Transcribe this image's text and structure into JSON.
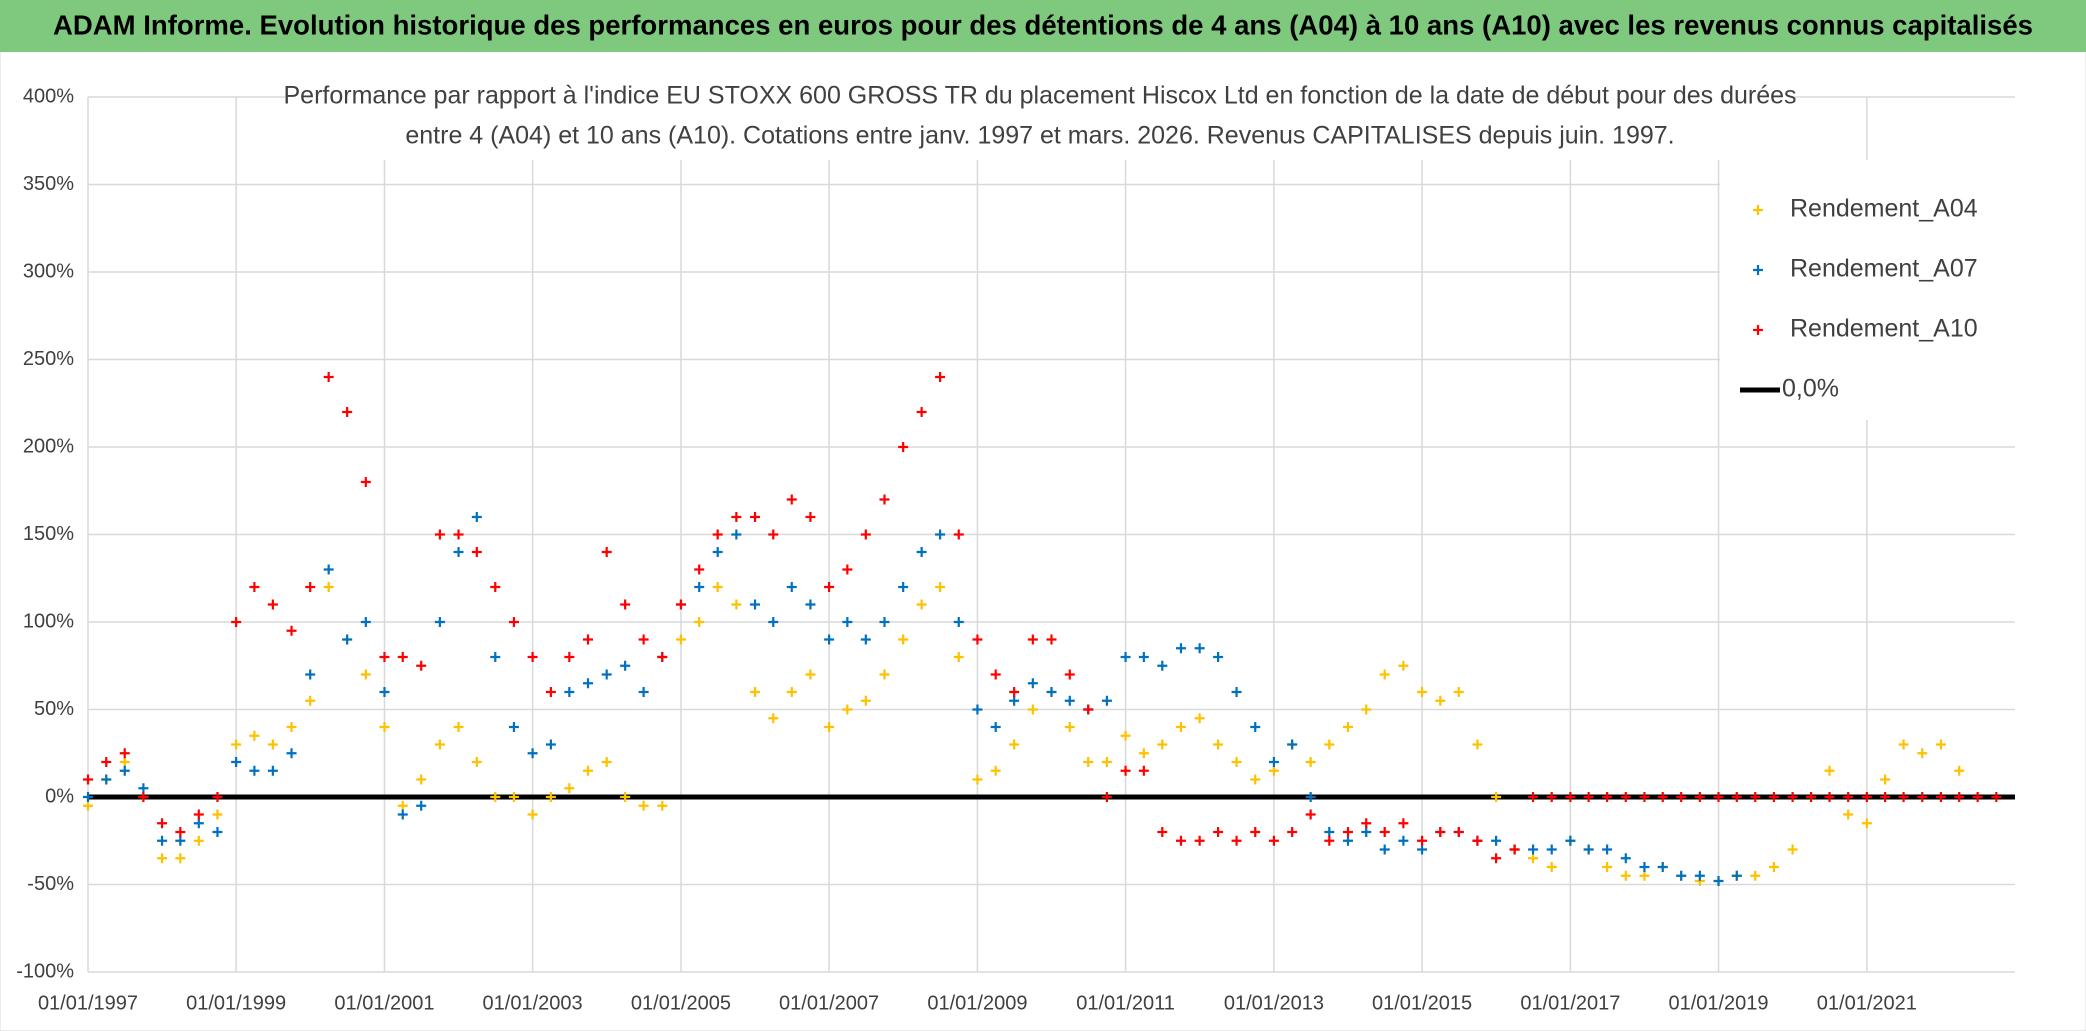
{
  "chart_data": {
    "type": "scatter",
    "title": "ADAM Informe. Evolution historique des performances en euros pour des détentions de 4 ans (A04) à 10 ans (A10) avec les revenus connus capitalisés",
    "subtitle": [
      "Performance par rapport à l'indice EU STOXX 600 GROSS TR  du placement Hiscox Ltd en fonction de la date de début pour des durées",
      "entre 4 (A04) et 10 ans (A10). Cotations entre janv. 1997 et mars. 2026. Revenus CAPITALISES depuis juin. 1997."
    ],
    "x": [
      "01/01/1997",
      "01/04/1997",
      "01/07/1997",
      "01/10/1997",
      "01/01/1998",
      "01/04/1998",
      "01/07/1998",
      "01/10/1998",
      "01/01/1999",
      "01/04/1999",
      "01/07/1999",
      "01/10/1999",
      "01/01/2000",
      "01/04/2000",
      "01/07/2000",
      "01/10/2000",
      "01/01/2001",
      "01/04/2001",
      "01/07/2001",
      "01/10/2001",
      "01/01/2002",
      "01/04/2002",
      "01/07/2002",
      "01/10/2002",
      "01/01/2003",
      "01/04/2003",
      "01/07/2003",
      "01/10/2003",
      "01/01/2004",
      "01/04/2004",
      "01/07/2004",
      "01/10/2004",
      "01/01/2005",
      "01/04/2005",
      "01/07/2005",
      "01/10/2005",
      "01/01/2006",
      "01/04/2006",
      "01/07/2006",
      "01/10/2006",
      "01/01/2007",
      "01/04/2007",
      "01/07/2007",
      "01/10/2007",
      "01/01/2008",
      "01/04/2008",
      "01/07/2008",
      "01/10/2008",
      "01/01/2009",
      "01/04/2009",
      "01/07/2009",
      "01/10/2009",
      "01/01/2010",
      "01/04/2010",
      "01/07/2010",
      "01/10/2010",
      "01/01/2011",
      "01/04/2011",
      "01/07/2011",
      "01/10/2011",
      "01/01/2012",
      "01/04/2012",
      "01/07/2012",
      "01/10/2012",
      "01/01/2013",
      "01/04/2013",
      "01/07/2013",
      "01/10/2013",
      "01/01/2014",
      "01/04/2014",
      "01/07/2014",
      "01/10/2014",
      "01/01/2015",
      "01/04/2015",
      "01/07/2015",
      "01/10/2015",
      "01/01/2016",
      "01/04/2016",
      "01/07/2016",
      "01/10/2016",
      "01/01/2017",
      "01/04/2017",
      "01/07/2017",
      "01/10/2017",
      "01/01/2018",
      "01/04/2018",
      "01/07/2018",
      "01/10/2018",
      "01/01/2019",
      "01/04/2019",
      "01/07/2019",
      "01/10/2019",
      "01/01/2020",
      "01/04/2020",
      "01/07/2020",
      "01/10/2020",
      "01/01/2021",
      "01/04/2021",
      "01/07/2021",
      "01/10/2021",
      "01/01/2022",
      "01/04/2022",
      "01/07/2022",
      "01/10/2022"
    ],
    "series": [
      {
        "name": "Rendement_A04",
        "color": "#ffc000",
        "values": [
          -5,
          10,
          20,
          0,
          -35,
          -35,
          -25,
          -10,
          30,
          35,
          30,
          40,
          55,
          120,
          90,
          70,
          40,
          -5,
          10,
          30,
          40,
          20,
          0,
          0,
          -10,
          0,
          5,
          15,
          20,
          0,
          -5,
          -5,
          90,
          100,
          120,
          110,
          60,
          45,
          60,
          70,
          40,
          50,
          55,
          70,
          90,
          110,
          120,
          80,
          10,
          15,
          30,
          50,
          60,
          40,
          20,
          20,
          35,
          25,
          30,
          40,
          45,
          30,
          20,
          10,
          15,
          30,
          20,
          30,
          40,
          50,
          70,
          75,
          60,
          55,
          60,
          30,
          0,
          -30,
          -35,
          -40,
          -25,
          -30,
          -40,
          -45,
          -45,
          -40,
          -45,
          -48,
          -48,
          -45,
          -45,
          -40,
          -30,
          0,
          15,
          -10,
          -15,
          10,
          30,
          25,
          30,
          15,
          null,
          null
        ]
      },
      {
        "name": "Rendement_A07",
        "color": "#0070c0",
        "values": [
          0,
          10,
          15,
          5,
          -25,
          -25,
          -15,
          -20,
          20,
          15,
          15,
          25,
          70,
          130,
          90,
          100,
          60,
          -10,
          -5,
          100,
          140,
          160,
          80,
          40,
          25,
          30,
          60,
          65,
          70,
          75,
          60,
          80,
          110,
          120,
          140,
          150,
          110,
          100,
          120,
          110,
          90,
          100,
          90,
          100,
          120,
          140,
          150,
          100,
          50,
          40,
          55,
          65,
          60,
          55,
          50,
          55,
          80,
          80,
          75,
          85,
          85,
          80,
          60,
          40,
          20,
          30,
          0,
          -20,
          -25,
          -20,
          -30,
          -25,
          -30,
          -20,
          -20,
          -25,
          -25,
          -30,
          -30,
          -30,
          -25,
          -30,
          -30,
          -35,
          -40,
          -40,
          -45,
          -45,
          -48,
          -45,
          null,
          null,
          null,
          null,
          null,
          null,
          null,
          null,
          null,
          null,
          null,
          null,
          null,
          null
        ]
      },
      {
        "name": "Rendement_A10",
        "color": "#ff0000",
        "values": [
          10,
          20,
          25,
          0,
          -15,
          -20,
          -10,
          0,
          100,
          120,
          110,
          95,
          120,
          240,
          220,
          180,
          80,
          80,
          75,
          150,
          150,
          140,
          120,
          100,
          80,
          60,
          80,
          90,
          140,
          110,
          90,
          80,
          110,
          130,
          150,
          160,
          160,
          150,
          170,
          160,
          120,
          130,
          150,
          170,
          200,
          220,
          240,
          150,
          90,
          70,
          60,
          90,
          90,
          70,
          50,
          0,
          15,
          15,
          -20,
          -25,
          -25,
          -20,
          -25,
          -20,
          -25,
          -20,
          -10,
          -25,
          -20,
          -15,
          -20,
          -15,
          -25,
          -20,
          -20,
          -25,
          -35,
          -30,
          0,
          0,
          0,
          0,
          0,
          0,
          0,
          0,
          0,
          0,
          0,
          0,
          0,
          0,
          0,
          0,
          0,
          0,
          0,
          0,
          0,
          0,
          0,
          0,
          0,
          0
        ]
      }
    ],
    "reference_line": {
      "name": "0,0%",
      "value": 0,
      "color": "#000000"
    },
    "xlim": [
      "01/01/1997",
      "01/01/2023"
    ],
    "xticks": [
      "01/01/1997",
      "01/01/1999",
      "01/01/2001",
      "01/01/2003",
      "01/01/2005",
      "01/01/2007",
      "01/01/2009",
      "01/01/2011",
      "01/01/2013",
      "01/01/2015",
      "01/01/2017",
      "01/01/2019",
      "01/01/2021"
    ],
    "ylim": [
      -100,
      400
    ],
    "yticks": [
      {
        "value": -100,
        "label": "-100%"
      },
      {
        "value": -50,
        "label": "-50%"
      },
      {
        "value": 0,
        "label": "0%"
      },
      {
        "value": 50,
        "label": "50%"
      },
      {
        "value": 100,
        "label": "100%"
      },
      {
        "value": 150,
        "label": "150%"
      },
      {
        "value": 200,
        "label": "200%"
      },
      {
        "value": 250,
        "label": "250%"
      },
      {
        "value": 300,
        "label": "300%"
      },
      {
        "value": 350,
        "label": "350%"
      },
      {
        "value": 400,
        "label": "400%"
      }
    ],
    "grid": true,
    "legend": "top-right"
  }
}
